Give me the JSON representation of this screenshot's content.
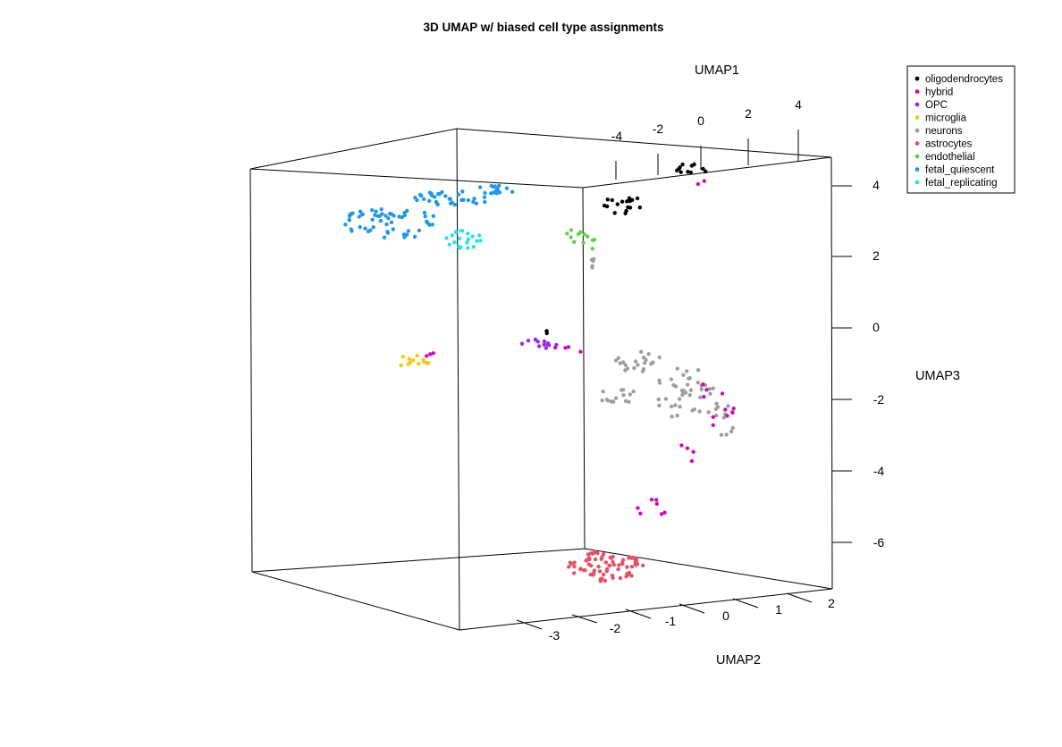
{
  "chart_data": {
    "type": "scatter",
    "title": "3D UMAP w/ biased cell type assignments",
    "axes": {
      "x": {
        "label": "UMAP1",
        "ticks": [
          "-4",
          "-2",
          "0",
          "2",
          "4"
        ]
      },
      "y": {
        "label": "UMAP2",
        "ticks": [
          "-3",
          "-2",
          "-1",
          "0",
          "1",
          "2"
        ]
      },
      "z": {
        "label": "UMAP3",
        "ticks": [
          "4",
          "2",
          "0",
          "-2",
          "-4",
          "-6"
        ]
      }
    },
    "legend": {
      "position": "top-right",
      "items": [
        {
          "label": "oligodendrocytes",
          "color": "#000000"
        },
        {
          "label": "hybrid",
          "color": "#CD0BBC"
        },
        {
          "label": "OPC",
          "color": "#9A2BE0"
        },
        {
          "label": "microglia",
          "color": "#F5C710"
        },
        {
          "label": "neurons",
          "color": "#9E9E9E"
        },
        {
          "label": "astrocytes",
          "color": "#DF536B"
        },
        {
          "label": "endothelial",
          "color": "#61D04F"
        },
        {
          "label": "fetal_quiescent",
          "color": "#2297E6"
        },
        {
          "label": "fetal_replicating",
          "color": "#28E2E5"
        }
      ]
    },
    "series": [
      {
        "name": "oligodendrocytes",
        "color": "#000000",
        "count": 30
      },
      {
        "name": "hybrid",
        "color": "#CD0BBC",
        "count": 30
      },
      {
        "name": "OPC",
        "color": "#9A2BE0",
        "count": 12
      },
      {
        "name": "microglia",
        "color": "#F5C710",
        "count": 12
      },
      {
        "name": "neurons",
        "color": "#9E9E9E",
        "count": 90
      },
      {
        "name": "astrocytes",
        "color": "#DF536B",
        "count": 75
      },
      {
        "name": "endothelial",
        "color": "#61D04F",
        "count": 12
      },
      {
        "name": "fetal_quiescent",
        "color": "#2297E6",
        "count": 105
      },
      {
        "name": "fetal_replicating",
        "color": "#28E2E5",
        "count": 20
      }
    ]
  }
}
